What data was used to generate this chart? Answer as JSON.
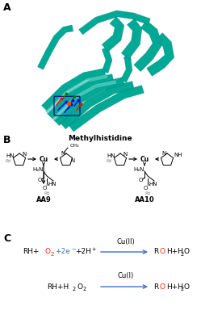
{
  "panel_labels": [
    "A",
    "B",
    "C"
  ],
  "panel_label_fontsize": 9,
  "panel_label_fontweight": "bold",
  "background_color": "#ffffff",
  "section_B_title": "Methylhistidine",
  "section_B_title_fontsize": 6.5,
  "section_B_title_fontweight": "bold",
  "AA9_label": "AA9",
  "AA10_label": "AA10",
  "text_color": "#000000",
  "red_color": "#ff2200",
  "blue_color": "#4472c4",
  "teal_color": "#00a896",
  "teal_dark": "#007a6e",
  "teal_light": "#4dc9b8",
  "arrow_color": "#4472c4",
  "protein_color": "#00a896",
  "protein_dark": "#006d63",
  "protein_highlight": "#5dd4c4"
}
